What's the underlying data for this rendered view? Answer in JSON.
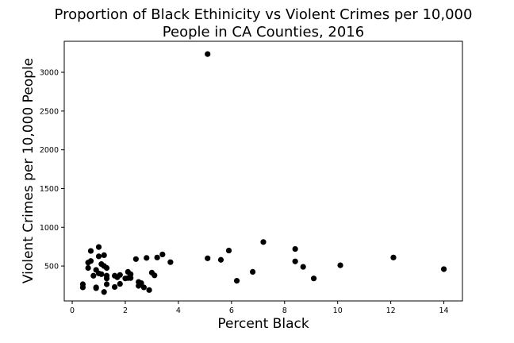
{
  "chart_data": {
    "type": "scatter",
    "title_lines": [
      "Proportion of Black Ethinicity vs Violent Crimes per 10,000",
      "People in CA Counties, 2016"
    ],
    "xlabel": "Percent Black",
    "ylabel": "Violent Crimes per 10,000 People",
    "xlim": [
      -0.3,
      14.7
    ],
    "ylim": [
      50,
      3400
    ],
    "xticks": [
      0,
      2,
      4,
      6,
      8,
      10,
      12,
      14
    ],
    "yticks": [
      500,
      1000,
      1500,
      2000,
      2500,
      3000
    ],
    "grid": false,
    "marker_color": "#000000",
    "points": [
      {
        "x": 0.4,
        "y": 265
      },
      {
        "x": 0.4,
        "y": 225
      },
      {
        "x": 0.6,
        "y": 545
      },
      {
        "x": 0.6,
        "y": 475
      },
      {
        "x": 0.7,
        "y": 565
      },
      {
        "x": 0.7,
        "y": 695
      },
      {
        "x": 0.8,
        "y": 375
      },
      {
        "x": 0.9,
        "y": 450
      },
      {
        "x": 0.9,
        "y": 215
      },
      {
        "x": 0.9,
        "y": 225
      },
      {
        "x": 1.0,
        "y": 745
      },
      {
        "x": 1.0,
        "y": 625
      },
      {
        "x": 1.0,
        "y": 405
      },
      {
        "x": 1.1,
        "y": 525
      },
      {
        "x": 1.1,
        "y": 395
      },
      {
        "x": 1.2,
        "y": 640
      },
      {
        "x": 1.2,
        "y": 165
      },
      {
        "x": 1.2,
        "y": 500
      },
      {
        "x": 1.3,
        "y": 475
      },
      {
        "x": 1.3,
        "y": 375
      },
      {
        "x": 1.3,
        "y": 340
      },
      {
        "x": 1.3,
        "y": 265
      },
      {
        "x": 1.6,
        "y": 230
      },
      {
        "x": 1.6,
        "y": 375
      },
      {
        "x": 1.7,
        "y": 355
      },
      {
        "x": 1.8,
        "y": 270
      },
      {
        "x": 1.8,
        "y": 385
      },
      {
        "x": 2.0,
        "y": 340
      },
      {
        "x": 2.1,
        "y": 345
      },
      {
        "x": 2.1,
        "y": 425
      },
      {
        "x": 2.2,
        "y": 395
      },
      {
        "x": 2.2,
        "y": 345
      },
      {
        "x": 2.4,
        "y": 590
      },
      {
        "x": 2.5,
        "y": 295
      },
      {
        "x": 2.5,
        "y": 245
      },
      {
        "x": 2.6,
        "y": 280
      },
      {
        "x": 2.7,
        "y": 225
      },
      {
        "x": 2.8,
        "y": 605
      },
      {
        "x": 2.9,
        "y": 190
      },
      {
        "x": 3.0,
        "y": 415
      },
      {
        "x": 3.1,
        "y": 380
      },
      {
        "x": 3.2,
        "y": 610
      },
      {
        "x": 3.4,
        "y": 650
      },
      {
        "x": 3.7,
        "y": 550
      },
      {
        "x": 5.1,
        "y": 3235
      },
      {
        "x": 5.1,
        "y": 600
      },
      {
        "x": 5.6,
        "y": 580
      },
      {
        "x": 5.9,
        "y": 700
      },
      {
        "x": 6.2,
        "y": 310
      },
      {
        "x": 6.8,
        "y": 425
      },
      {
        "x": 7.2,
        "y": 810
      },
      {
        "x": 8.4,
        "y": 720
      },
      {
        "x": 8.4,
        "y": 560
      },
      {
        "x": 8.7,
        "y": 490
      },
      {
        "x": 9.1,
        "y": 340
      },
      {
        "x": 10.1,
        "y": 510
      },
      {
        "x": 12.1,
        "y": 610
      },
      {
        "x": 14.0,
        "y": 460
      }
    ]
  }
}
